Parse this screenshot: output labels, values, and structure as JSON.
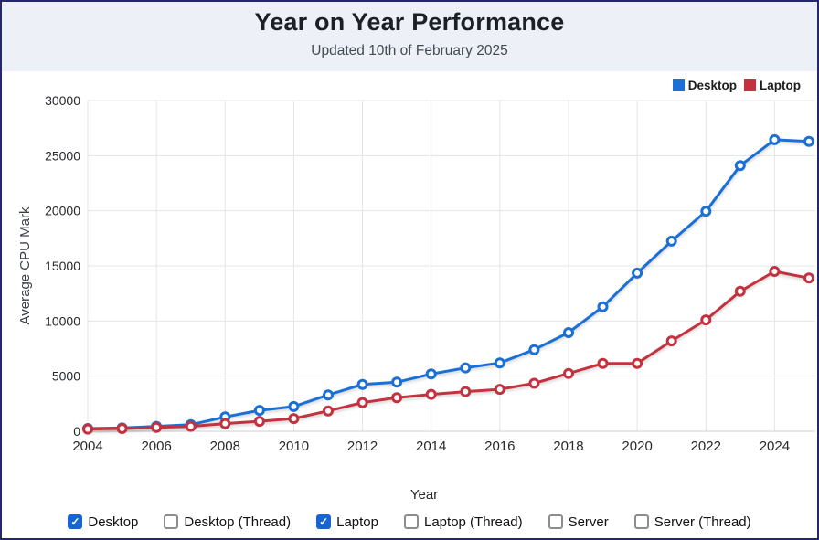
{
  "page": {
    "title": "Year on Year Performance",
    "subtitle": "Updated 10th of February 2025"
  },
  "chart_data": {
    "type": "line",
    "title": "Year on Year Performance",
    "xlabel": "Year",
    "ylabel": "Average CPU Mark",
    "ylim": [
      0,
      30000
    ],
    "y_ticks": [
      0,
      5000,
      10000,
      15000,
      20000,
      25000,
      30000
    ],
    "x_tick_labels": [
      2004,
      2006,
      2008,
      2010,
      2012,
      2014,
      2016,
      2018,
      2020,
      2022,
      2024
    ],
    "grid": true,
    "legend_position": "top-right",
    "x": [
      2004,
      2005,
      2006,
      2007,
      2008,
      2009,
      2010,
      2011,
      2012,
      2013,
      2014,
      2015,
      2016,
      2017,
      2018,
      2019,
      2020,
      2021,
      2022,
      2023,
      2024,
      2025
    ],
    "series": [
      {
        "name": "Desktop",
        "color": "#1a70d6",
        "values": [
          250,
          300,
          450,
          600,
          1300,
          1900,
          2250,
          3300,
          4250,
          4450,
          5200,
          5750,
          6200,
          7400,
          8950,
          11300,
          14350,
          17250,
          19950,
          24100,
          26450,
          26300
        ]
      },
      {
        "name": "Laptop",
        "color": "#c4323f",
        "values": [
          200,
          250,
          350,
          450,
          700,
          900,
          1150,
          1850,
          2600,
          3050,
          3350,
          3600,
          3800,
          4350,
          5250,
          6150,
          6150,
          8200,
          10100,
          12700,
          14500,
          13900
        ]
      }
    ]
  },
  "controls": {
    "checkboxes": [
      {
        "label": "Desktop",
        "checked": true
      },
      {
        "label": "Desktop (Thread)",
        "checked": false
      },
      {
        "label": "Laptop",
        "checked": true
      },
      {
        "label": "Laptop (Thread)",
        "checked": false
      },
      {
        "label": "Server",
        "checked": false
      },
      {
        "label": "Server (Thread)",
        "checked": false
      }
    ]
  },
  "colors": {
    "header_bg": "#edf1f7",
    "page_border": "#26266b",
    "grid": "#e5e5e5",
    "zero_line": "#d2d2d2",
    "tick_text": "#26282b",
    "axis_title": "#3a3f44",
    "checkbox_checked": "#1665d3"
  }
}
